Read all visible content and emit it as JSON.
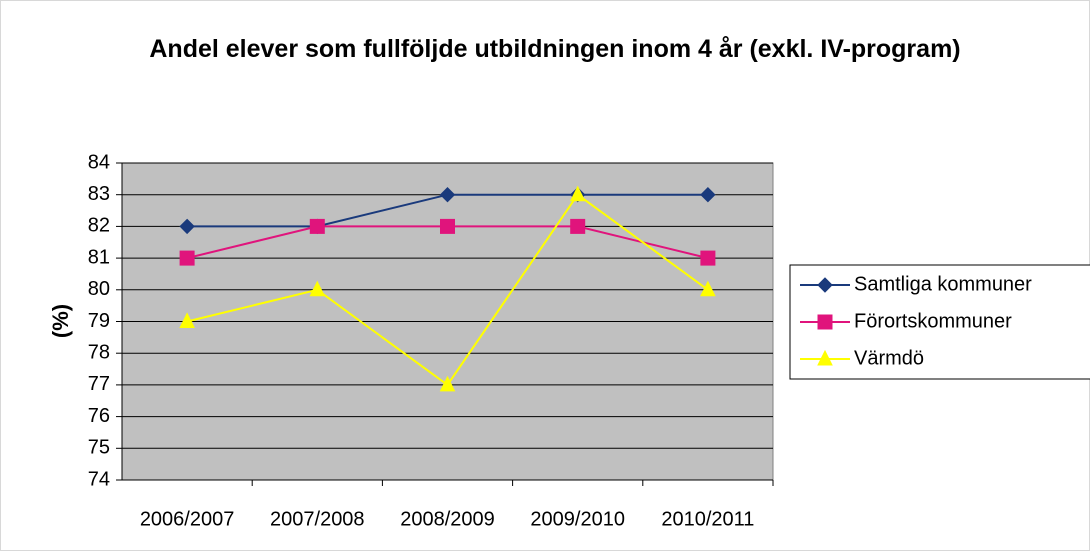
{
  "chart_data": {
    "type": "line",
    "title": "Andel elever som fullföljde utbildningen inom 4 år (exkl. IV-program)",
    "y_label": "(%)",
    "categories": [
      "2006/2007",
      "2007/2008",
      "2008/2009",
      "2009/2010",
      "2010/2011"
    ],
    "series": [
      {
        "name": "Samtliga kommuner",
        "color": "#1a3a7c",
        "marker": "diamond",
        "values": [
          82,
          82,
          83,
          83,
          83
        ]
      },
      {
        "name": "Förortskommuner",
        "color": "#e0147c",
        "marker": "square",
        "values": [
          81,
          82,
          82,
          82,
          81
        ]
      },
      {
        "name": "Värmdö",
        "color": "#ffff00",
        "marker": "triangle",
        "values": [
          79,
          80,
          77,
          83,
          80
        ]
      }
    ],
    "ylim": [
      74,
      84
    ],
    "yticks": [
      74,
      75,
      76,
      77,
      78,
      79,
      80,
      81,
      82,
      83,
      84
    ],
    "grid": true,
    "legend": "right",
    "plot_background": "#c0c0c0"
  }
}
